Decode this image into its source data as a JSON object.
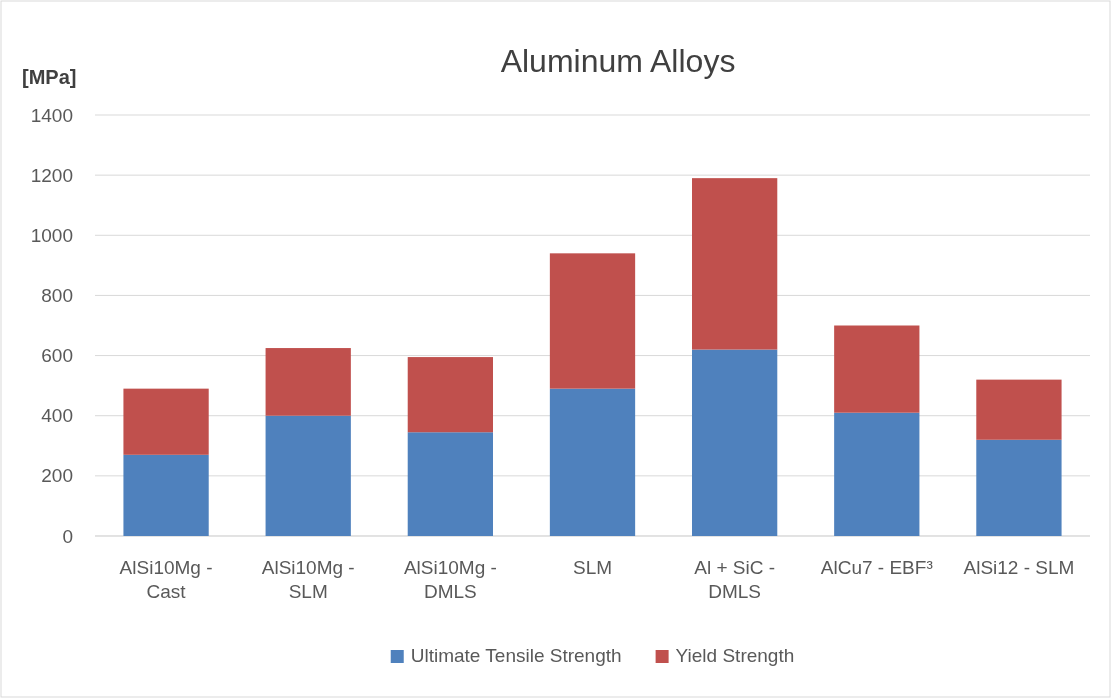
{
  "chart_data": {
    "type": "bar",
    "title": "Aluminum Alloys",
    "ylabel": "[MPa]",
    "categories": [
      "AlSi10Mg - Cast",
      "AlSi10Mg - SLM",
      "AlSi10Mg - DMLS",
      "SLM",
      "Al + SiC - DMLS",
      "AlCu7 - EBF³",
      "AlSi12 - SLM"
    ],
    "stacked": true,
    "series": [
      {
        "name": "Ultimate Tensile Strength",
        "color": "#4f81bd",
        "values": [
          270,
          400,
          345,
          490,
          620,
          410,
          320
        ]
      },
      {
        "name": "Yield Strength",
        "color": "#c0504d",
        "values": [
          220,
          225,
          250,
          450,
          570,
          290,
          200
        ]
      }
    ],
    "ylim": [
      0,
      1400
    ],
    "yticks": [
      0,
      200,
      400,
      600,
      800,
      1000,
      1200,
      1400
    ],
    "grid": "y",
    "legend": "bottom"
  }
}
